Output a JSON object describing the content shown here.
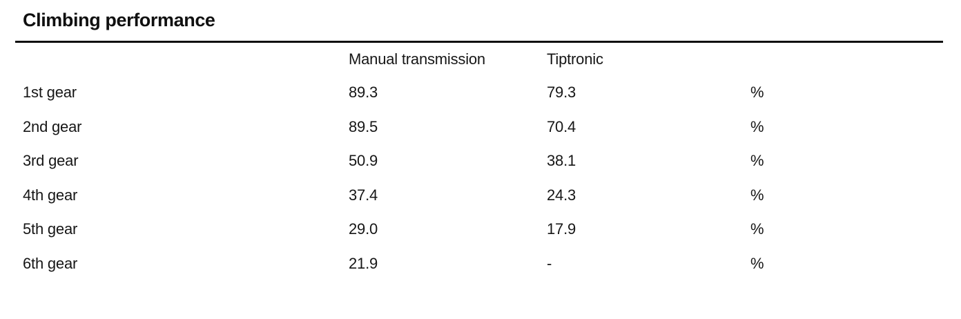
{
  "document": {
    "title": "Climbing performance"
  },
  "table": {
    "columns": {
      "label_header": "",
      "manual_header": "Manual transmission",
      "tiptronic_header": "Tiptronic",
      "unit_header": ""
    },
    "rows": [
      {
        "label": "1st gear",
        "manual": "89.3",
        "tiptronic": "79.3",
        "unit": "%"
      },
      {
        "label": "2nd gear",
        "manual": "89.5",
        "tiptronic": "70.4",
        "unit": "%"
      },
      {
        "label": "3rd gear",
        "manual": "50.9",
        "tiptronic": "38.1",
        "unit": "%"
      },
      {
        "label": "4th gear",
        "manual": "37.4",
        "tiptronic": "24.3",
        "unit": "%"
      },
      {
        "label": "5th gear",
        "manual": "29.0",
        "tiptronic": "17.9",
        "unit": "%"
      },
      {
        "label": "6th gear",
        "manual": "21.9",
        "tiptronic": "-",
        "unit": "%"
      }
    ],
    "colors": {
      "text": "#161616",
      "rule": "#0d0d0d",
      "background": "#ffffff"
    }
  }
}
